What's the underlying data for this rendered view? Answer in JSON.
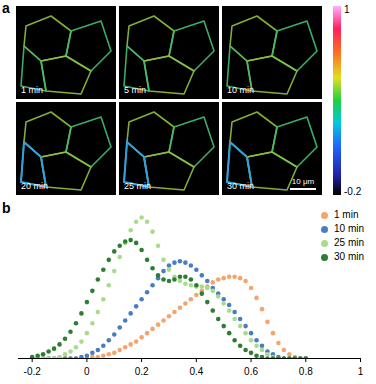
{
  "chart_data": [
    {
      "type": "image_panels",
      "title": "a",
      "panels": [
        "1 min",
        "5 min",
        "10 min",
        "20 min",
        "25 min",
        "30 min"
      ],
      "scale_bar": "10 μm",
      "colorbar": {
        "range": [
          -0.2,
          1
        ],
        "ticks": [
          1,
          -0.2
        ]
      }
    },
    {
      "type": "scatter",
      "title": "b",
      "x": [
        -0.2,
        -0.18,
        -0.16,
        -0.14,
        -0.12,
        -0.1,
        -0.08,
        -0.06,
        -0.04,
        -0.02,
        0,
        0.02,
        0.04,
        0.06,
        0.08,
        0.1,
        0.12,
        0.14,
        0.16,
        0.18,
        0.2,
        0.22,
        0.24,
        0.26,
        0.28,
        0.3,
        0.32,
        0.34,
        0.36,
        0.38,
        0.4,
        0.42,
        0.44,
        0.46,
        0.48,
        0.5,
        0.52,
        0.54,
        0.56,
        0.58,
        0.6,
        0.62,
        0.64,
        0.66,
        0.68,
        0.7,
        0.72,
        0.74,
        0.76,
        0.78,
        0.8
      ],
      "series": [
        {
          "name": "1 min",
          "color": "#f4a46e",
          "values": [
            0,
            0,
            0,
            0,
            0,
            0,
            0,
            0,
            0,
            0,
            0,
            0.01,
            0.01,
            0.02,
            0.03,
            0.04,
            0.06,
            0.08,
            0.1,
            0.12,
            0.15,
            0.18,
            0.21,
            0.24,
            0.27,
            0.3,
            0.33,
            0.36,
            0.39,
            0.42,
            0.45,
            0.48,
            0.51,
            0.54,
            0.56,
            0.57,
            0.58,
            0.58,
            0.57,
            0.55,
            0.5,
            0.43,
            0.35,
            0.26,
            0.18,
            0.11,
            0.06,
            0.03,
            0.01,
            0,
            0
          ]
        },
        {
          "name": "10 min",
          "color": "#4a7cc4",
          "values": [
            0,
            0,
            0,
            0,
            0,
            0,
            0,
            0,
            0,
            0.01,
            0.02,
            0.04,
            0.06,
            0.09,
            0.13,
            0.17,
            0.22,
            0.27,
            0.32,
            0.37,
            0.42,
            0.47,
            0.52,
            0.57,
            0.62,
            0.66,
            0.68,
            0.69,
            0.68,
            0.66,
            0.63,
            0.59,
            0.55,
            0.5,
            0.46,
            0.42,
            0.38,
            0.33,
            0.28,
            0.23,
            0.18,
            0.13,
            0.09,
            0.05,
            0.03,
            0.01,
            0,
            0,
            0,
            0,
            0
          ]
        },
        {
          "name": "25 min",
          "color": "#a8dc8c",
          "values": [
            0,
            0,
            0,
            0,
            0,
            0.01,
            0.03,
            0.05,
            0.08,
            0.12,
            0.18,
            0.25,
            0.33,
            0.42,
            0.52,
            0.62,
            0.72,
            0.82,
            0.91,
            0.97,
            1.0,
            0.97,
            0.9,
            0.8,
            0.7,
            0.63,
            0.58,
            0.55,
            0.53,
            0.52,
            0.51,
            0.51,
            0.5,
            0.48,
            0.44,
            0.39,
            0.34,
            0.28,
            0.23,
            0.18,
            0.13,
            0.09,
            0.06,
            0.03,
            0.01,
            0,
            0,
            0,
            0,
            0,
            0
          ]
        },
        {
          "name": "30 min",
          "color": "#2e7d32",
          "values": [
            0.01,
            0.02,
            0.03,
            0.05,
            0.07,
            0.1,
            0.14,
            0.19,
            0.25,
            0.32,
            0.4,
            0.48,
            0.56,
            0.63,
            0.7,
            0.76,
            0.8,
            0.83,
            0.84,
            0.82,
            0.77,
            0.7,
            0.64,
            0.59,
            0.56,
            0.55,
            0.56,
            0.58,
            0.58,
            0.56,
            0.52,
            0.46,
            0.4,
            0.34,
            0.28,
            0.23,
            0.18,
            0.13,
            0.09,
            0.06,
            0.04,
            0.02,
            0.01,
            0,
            0,
            0,
            0,
            0,
            0,
            0,
            0
          ]
        }
      ],
      "xlim": [
        -0.25,
        1
      ],
      "xticks": [
        -0.2,
        0,
        0.2,
        0.4,
        0.6,
        0.8,
        1
      ],
      "ylim": [
        0,
        1.05
      ],
      "tick_labels": "x",
      "marker": "circle",
      "legend": "top-right"
    }
  ]
}
